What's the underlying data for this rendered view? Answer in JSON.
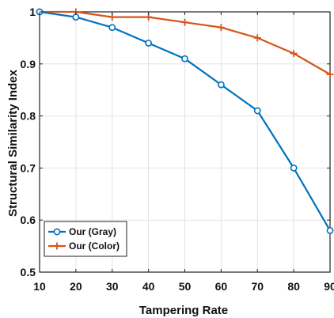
{
  "chart_data": {
    "type": "line",
    "xlabel": "Tampering Rate",
    "ylabel": "Structural Similarity Index",
    "xlim": [
      10,
      90
    ],
    "ylim": [
      0.5,
      1.0
    ],
    "x_ticks": [
      10,
      20,
      30,
      40,
      50,
      60,
      70,
      80,
      90
    ],
    "y_ticks": [
      0.5,
      0.6,
      0.7,
      0.8,
      0.9,
      1.0
    ],
    "y_tick_labels": [
      "0.5",
      "0.6",
      "0.7",
      "0.8",
      "0.9",
      "1"
    ],
    "grid": true,
    "legend_position": "bottom-left",
    "x": [
      10,
      20,
      30,
      40,
      50,
      60,
      70,
      80,
      90
    ],
    "series": [
      {
        "name": "Our (Gray)",
        "color": "#0072BD",
        "marker": "circle",
        "values": [
          1.0,
          0.99,
          0.97,
          0.94,
          0.91,
          0.86,
          0.81,
          0.7,
          0.58
        ]
      },
      {
        "name": "Our (Color)",
        "color": "#D95319",
        "marker": "plus",
        "values": [
          1.0,
          1.0,
          0.99,
          0.99,
          0.98,
          0.97,
          0.95,
          0.92,
          0.88
        ]
      }
    ]
  }
}
